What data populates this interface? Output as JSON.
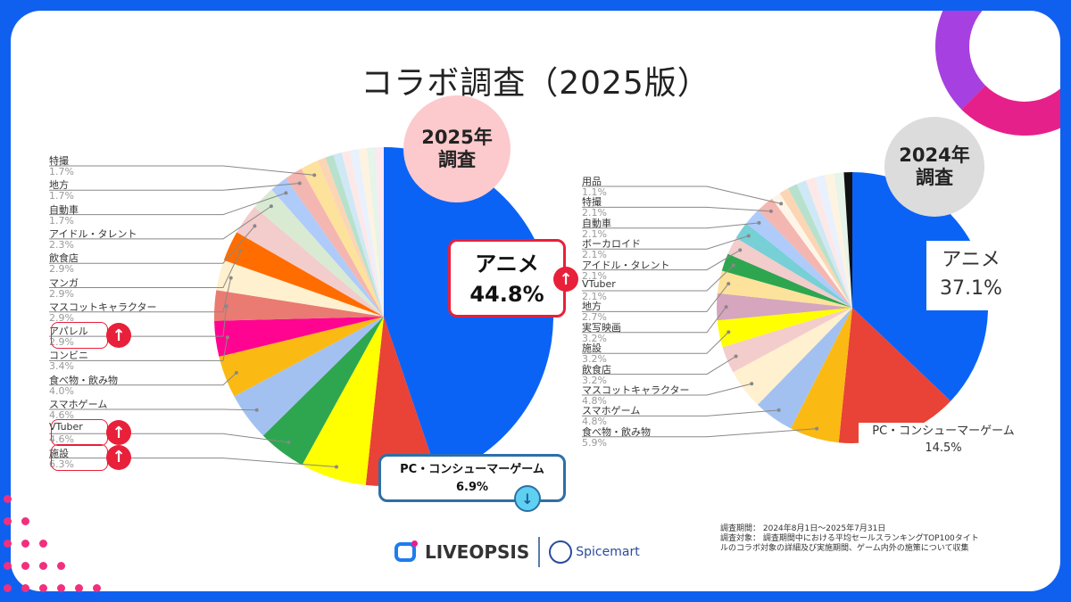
{
  "title": "コラボ調査（2025版）",
  "colors": {
    "frame": "#1060f0",
    "accent_up": "#e8203a",
    "accent_down": "#3dbbe8"
  },
  "chart_data": [
    {
      "type": "pie",
      "badge": "2025年\n調査",
      "start": "top",
      "direction": "clockwise",
      "slices": [
        {
          "label": "アニメ",
          "value": 44.8,
          "color": "#0b63f6",
          "trend": "up"
        },
        {
          "label": "PC・コンシューマーゲーム",
          "value": 6.9,
          "color": "#e84336",
          "trend": "down"
        },
        {
          "label": "施設",
          "value": 6.3,
          "color": "#ffff00",
          "trend": "up"
        },
        {
          "label": "VTuber",
          "value": 4.6,
          "color": "#2ea650",
          "trend": "up"
        },
        {
          "label": "スマホゲーム",
          "value": 4.6,
          "color": "#a3c1f0"
        },
        {
          "label": "食べ物・飲み物",
          "value": 4.0,
          "color": "#fbb913"
        },
        {
          "label": "コンビニ",
          "value": 3.4,
          "color": "#ff0490"
        },
        {
          "label": "アパレル",
          "value": 2.9,
          "color": "#ea7b72",
          "trend": "up"
        },
        {
          "label": "マスコットキャラクター",
          "value": 2.9,
          "color": "#fff0cf"
        },
        {
          "label": "マンガ",
          "value": 2.9,
          "color": "#ff6d01"
        },
        {
          "label": "飲食店",
          "value": 2.9,
          "color": "#f3cccc"
        },
        {
          "label": "アイドル・タレント",
          "value": 2.3,
          "color": "#d9ead3"
        },
        {
          "label": "自動車",
          "value": 1.7,
          "color": "#aecbfa"
        },
        {
          "label": "地方",
          "value": 1.7,
          "color": "#f4b6b0"
        },
        {
          "label": "特撮",
          "value": 1.7,
          "color": "#fde29b"
        }
      ]
    },
    {
      "type": "pie",
      "badge": "2024年\n調査",
      "start": "top",
      "direction": "clockwise",
      "slices": [
        {
          "label": "アニメ",
          "value": 37.1,
          "color": "#0b63f6"
        },
        {
          "label": "PC・コンシューマーゲーム",
          "value": 14.5,
          "color": "#e84336"
        },
        {
          "label": "食べ物・飲み物",
          "value": 5.9,
          "color": "#fbb913"
        },
        {
          "label": "スマホゲーム",
          "value": 4.8,
          "color": "#a3c1f0"
        },
        {
          "label": "マスコットキャラクター",
          "value": 4.8,
          "color": "#fff0cf"
        },
        {
          "label": "飲食店",
          "value": 3.2,
          "color": "#f3cccc"
        },
        {
          "label": "施設",
          "value": 3.2,
          "color": "#ffff00"
        },
        {
          "label": "実写映画",
          "value": 3.2,
          "color": "#d5a6bd"
        },
        {
          "label": "地方",
          "value": 2.7,
          "color": "#fde29b"
        },
        {
          "label": "VTuber",
          "value": 2.1,
          "color": "#2ea650"
        },
        {
          "label": "アイドル・タレント",
          "value": 2.1,
          "color": "#f3cccc"
        },
        {
          "label": "ボーカロイド",
          "value": 2.1,
          "color": "#76d0d6"
        },
        {
          "label": "自動車",
          "value": 2.1,
          "color": "#aecbfa"
        },
        {
          "label": "特撮",
          "value": 2.1,
          "color": "#f4b6b0"
        },
        {
          "label": "用品",
          "value": 1.1,
          "color": "#fdf6e8"
        }
      ]
    }
  ],
  "callouts": {
    "anime_2025": {
      "name": "アニメ",
      "value": "44.8%"
    },
    "pc_2025": {
      "name": "PC・コンシューマーゲーム",
      "value": "6.9%"
    },
    "anime_2024": {
      "name": "アニメ",
      "value": "37.1%"
    },
    "pc_2024": {
      "name": "PC・コンシューマーゲーム",
      "value": "14.5%"
    }
  },
  "note": {
    "period": "調査期間： 2024年8月1日〜2025年7月31日",
    "target1": "調査対象： 調査期間中における平均セールスランキングTOP100タイト",
    "target2": "ルのコラボ対象の詳細及び実施期間、ゲーム内外の施策について収集"
  },
  "logos": {
    "liveopsis": "LIVEOPSIS",
    "spicemart": "Spicemart"
  }
}
